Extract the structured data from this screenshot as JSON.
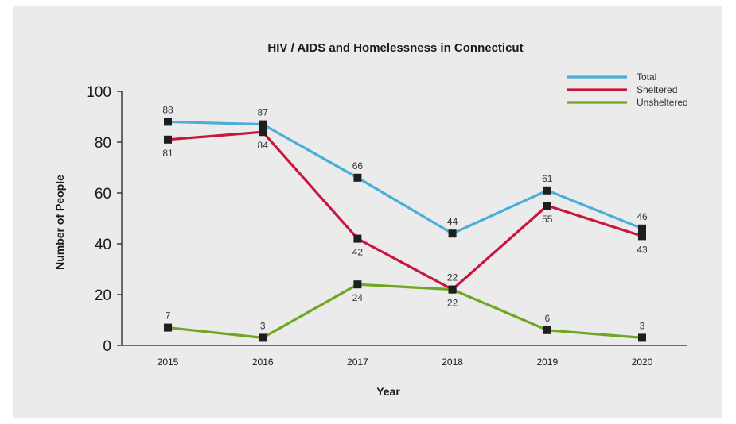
{
  "chart_data": {
    "type": "line",
    "title": "HIV / AIDS and Homelessness in Connecticut",
    "xlabel": "Year",
    "ylabel": "Number of People",
    "categories": [
      "2015",
      "2016",
      "2017",
      "2018",
      "2019",
      "2020"
    ],
    "yticks": [
      "0",
      "20",
      "40",
      "60",
      "80",
      "100"
    ],
    "ylim": [
      0,
      100
    ],
    "grid": false,
    "legend_position": "top-right",
    "series": [
      {
        "name": "Total",
        "color": "#4aaed9",
        "values": [
          88,
          87,
          66,
          44,
          61,
          46
        ]
      },
      {
        "name": "Sheltered",
        "color": "#c8163c",
        "values": [
          81,
          84,
          42,
          22,
          55,
          43
        ]
      },
      {
        "name": "Unsheltered",
        "color": "#6fa724",
        "values": [
          7,
          3,
          24,
          22,
          6,
          3
        ]
      }
    ]
  }
}
